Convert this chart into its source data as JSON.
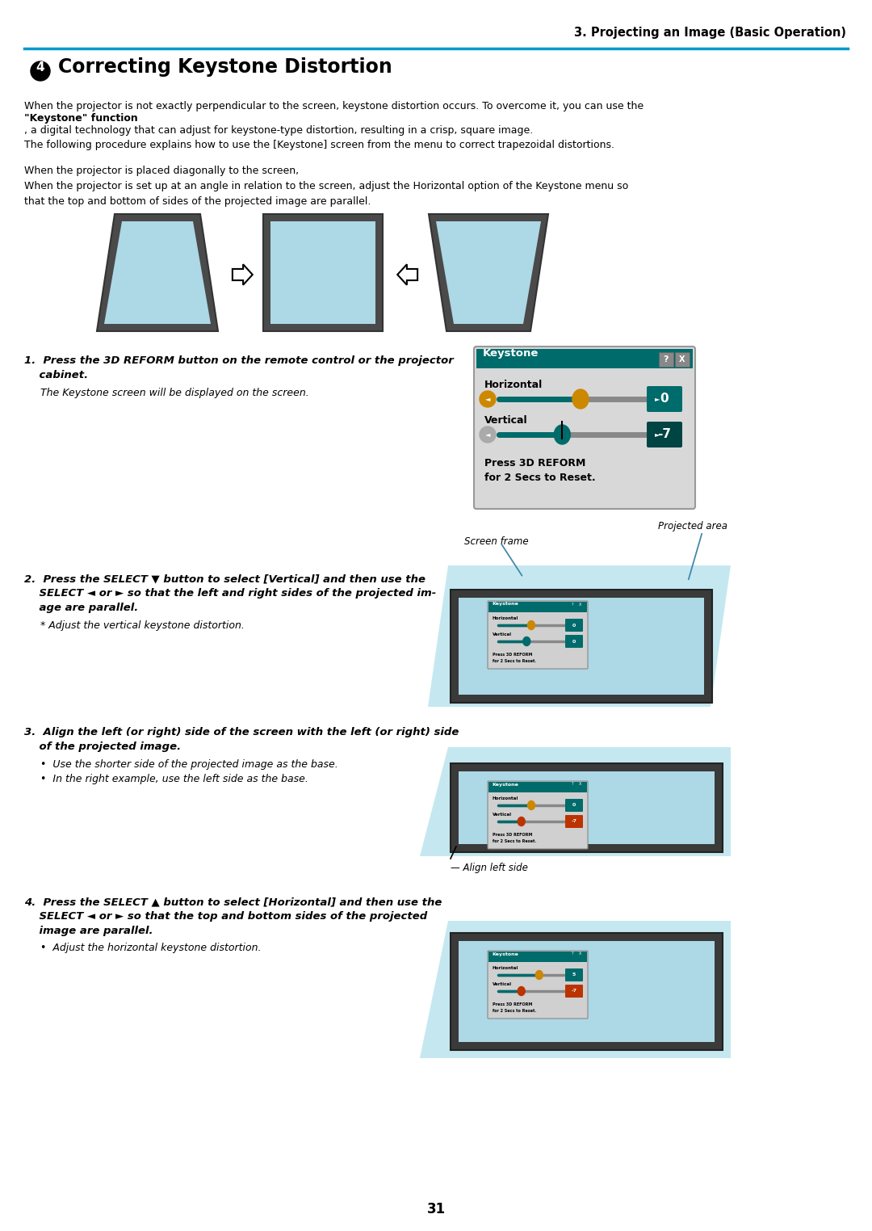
{
  "page_title": "3. Projecting an Image (Basic Operation)",
  "section_number": "4",
  "section_heading": "Correcting Keystone Distortion",
  "body_text1_plain": "When the projector is not exactly perpendicular to the screen, keystone distortion occurs. To overcome it, you can use the",
  "body_text1_bold": "\"Keystone\" function",
  "body_text1_rest": ", a digital technology that can adjust for keystone-type distortion, resulting in a crisp, square image.\nThe following procedure explains how to use the [Keystone] screen from the menu to correct trapezoidal distortions.",
  "body_text2": "When the projector is placed diagonally to the screen,\nWhen the projector is set up at an angle in relation to the screen, adjust the Horizontal option of the Keystone menu so\nthat the top and bottom of sides of the projected image are parallel.",
  "step1_line1": "1.  Press the 3D REFORM button on the remote control or the projector",
  "step1_line2": "    cabinet.",
  "step1_italic": "The Keystone screen will be displayed on the screen.",
  "step2_line1": "2.  Press the SELECT ▼ button to select [Vertical] and then use the",
  "step2_line2": "    SELECT ◄ or ► so that the left and right sides of the projected im-",
  "step2_line3": "    age are parallel.",
  "step2_italic": "* Adjust the vertical keystone distortion.",
  "step3_line1": "3.  Align the left (or right) side of the screen with the left (or right) side",
  "step3_line2": "    of the projected image.",
  "step3_bullet1": "•  Use the shorter side of the projected image as the base.",
  "step3_bullet2": "•  In the right example, use the left side as the base.",
  "step4_line1": "4.  Press the SELECT ▲ button to select [Horizontal] and then use the",
  "step4_line2": "    SELECT ◄ or ► so that the top and bottom sides of the projected",
  "step4_line3": "    image are parallel.",
  "step4_bullet1": "•  Adjust the horizontal keystone distortion.",
  "label_projected_area": "Projected area",
  "label_screen_frame": "Screen frame",
  "label_align_left": "Align left side",
  "keystone_title": "Keystone",
  "keystone_horizontal": "Horizontal",
  "keystone_vertical": "Vertical",
  "keystone_press": "Press 3D REFORM",
  "keystone_reset": "for 2 Secs to Reset.",
  "page_number": "31",
  "teal": "#006B6B",
  "blue_line": "#0099CC",
  "bg": "#FFFFFF",
  "light_blue": "#ADD8E6",
  "light_blue2": "#C5E8F0",
  "dark_gray": "#555555",
  "dialog_bg": "#D8D8D8",
  "orange": "#CC8800",
  "gray_btn": "#AAAAAA",
  "dark_teal": "#004444"
}
